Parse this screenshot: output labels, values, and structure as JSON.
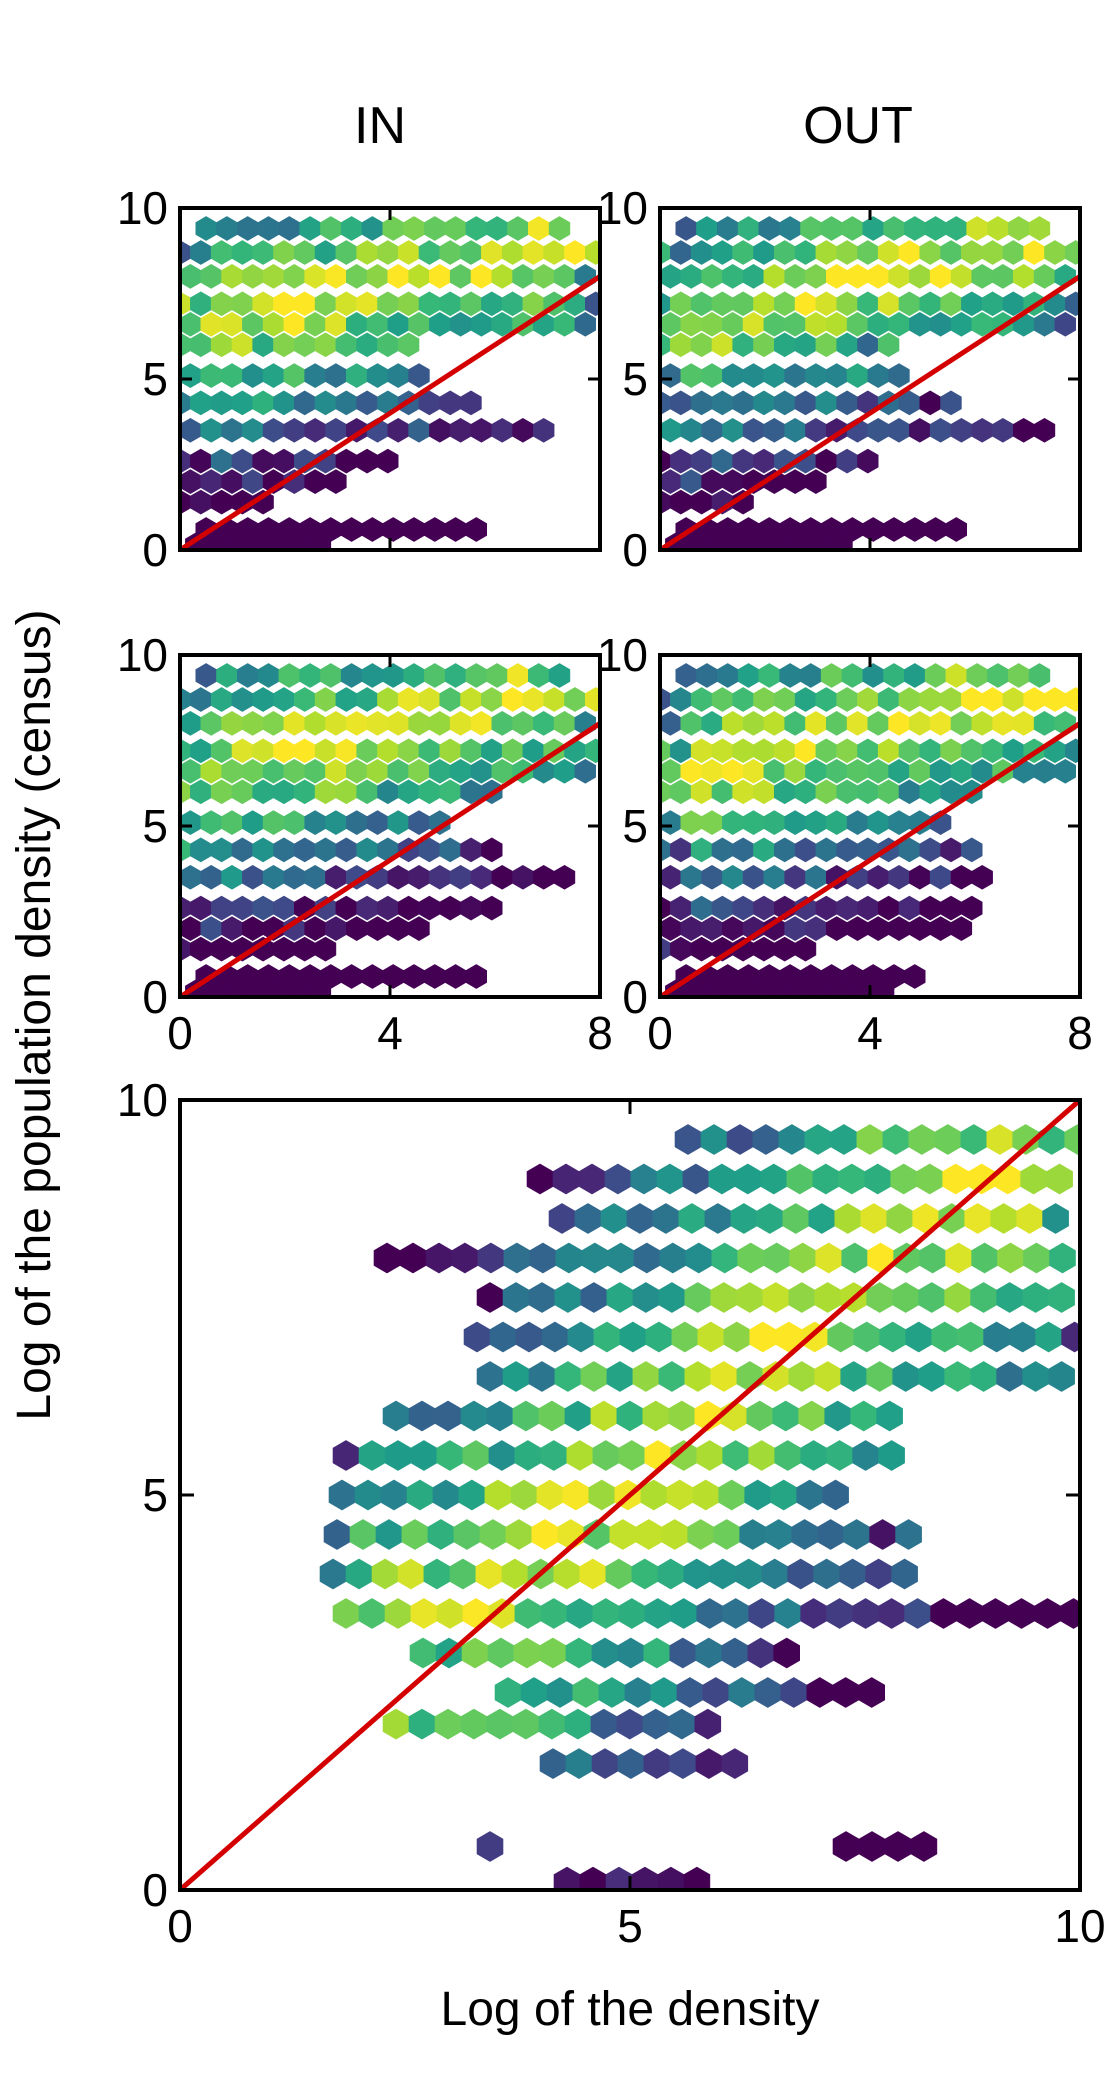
{
  "figure": {
    "ylabel": "Log of the population density (census)",
    "xlabel": "Log of the density",
    "column_titles": [
      "IN",
      "OUT"
    ]
  },
  "chart_data": [
    {
      "type": "heatmap",
      "title": "IN",
      "xlim": [
        0,
        8
      ],
      "ylim": [
        0,
        10
      ],
      "xticks": [
        "0",
        "4",
        "8"
      ],
      "yticks": [
        "0",
        "5",
        "10"
      ],
      "ref_line": [
        [
          0,
          0
        ],
        [
          8,
          8
        ]
      ],
      "colormap": "viridis",
      "density_ridge": {
        "slope": 0.35,
        "intercept": 6.4
      },
      "bands": [
        {
          "y": 0.15,
          "x": [
            0.3,
            3.0
          ]
        },
        {
          "y": 0.6,
          "x": [
            0.3,
            6.0
          ]
        },
        {
          "y": 1.4,
          "x": [
            0.0,
            1.8
          ]
        },
        {
          "y": 2.0,
          "x": [
            0.0,
            3.3
          ]
        },
        {
          "y": 2.6,
          "x": [
            0.0,
            4.2
          ]
        },
        {
          "y": 3.5,
          "x": [
            0.0,
            7.3
          ]
        },
        {
          "y": 4.3,
          "x": [
            0.0,
            5.7
          ]
        },
        {
          "y": 5.1,
          "x": [
            0.0,
            4.8
          ]
        },
        {
          "y": 6.0,
          "x": [
            0.0,
            4.5
          ]
        },
        {
          "y": 6.6,
          "x": [
            0.0,
            8.0
          ]
        },
        {
          "y": 7.2,
          "x": [
            0.0,
            8.0
          ]
        },
        {
          "y": 8.0,
          "x": [
            0.0,
            8.0
          ]
        },
        {
          "y": 8.7,
          "x": [
            0.0,
            8.0
          ]
        },
        {
          "y": 9.4,
          "x": [
            0.3,
            7.4
          ]
        }
      ]
    },
    {
      "type": "heatmap",
      "title": "OUT",
      "xlim": [
        0,
        8
      ],
      "ylim": [
        0,
        10
      ],
      "xticks": [
        "0",
        "4",
        "8"
      ],
      "yticks": [
        "0",
        "5",
        "10"
      ],
      "ref_line": [
        [
          0,
          0
        ],
        [
          8,
          8
        ]
      ],
      "colormap": "viridis",
      "density_ridge": {
        "slope": 0.35,
        "intercept": 6.4
      },
      "bands": [
        {
          "y": 0.15,
          "x": [
            0.3,
            3.5
          ]
        },
        {
          "y": 0.6,
          "x": [
            0.3,
            5.7
          ]
        },
        {
          "y": 1.4,
          "x": [
            0.0,
            1.8
          ]
        },
        {
          "y": 2.0,
          "x": [
            0.0,
            3.2
          ]
        },
        {
          "y": 2.6,
          "x": [
            0.0,
            4.2
          ]
        },
        {
          "y": 3.5,
          "x": [
            0.0,
            7.4
          ]
        },
        {
          "y": 4.3,
          "x": [
            0.0,
            5.6
          ]
        },
        {
          "y": 5.1,
          "x": [
            0.0,
            4.6
          ]
        },
        {
          "y": 6.0,
          "x": [
            0.0,
            4.4
          ]
        },
        {
          "y": 6.6,
          "x": [
            0.0,
            8.0
          ]
        },
        {
          "y": 7.2,
          "x": [
            0.0,
            8.0
          ]
        },
        {
          "y": 8.0,
          "x": [
            0.0,
            8.0
          ]
        },
        {
          "y": 8.7,
          "x": [
            0.0,
            8.0
          ]
        },
        {
          "y": 9.4,
          "x": [
            0.3,
            7.4
          ]
        }
      ]
    },
    {
      "type": "heatmap",
      "xlim": [
        0,
        8
      ],
      "ylim": [
        0,
        10
      ],
      "xticks": [
        "0",
        "4",
        "8"
      ],
      "yticks": [
        "0",
        "5",
        "10"
      ],
      "ref_line": [
        [
          0,
          0
        ],
        [
          8,
          8
        ]
      ],
      "colormap": "viridis",
      "density_ridge": {
        "slope": 0.35,
        "intercept": 6.4
      },
      "bands": [
        {
          "y": 0.15,
          "x": [
            0.3,
            3.0
          ]
        },
        {
          "y": 0.6,
          "x": [
            0.3,
            5.7
          ]
        },
        {
          "y": 1.4,
          "x": [
            0.0,
            2.8
          ]
        },
        {
          "y": 2.0,
          "x": [
            0.0,
            4.8
          ]
        },
        {
          "y": 2.6,
          "x": [
            0.0,
            6.2
          ]
        },
        {
          "y": 3.5,
          "x": [
            0.0,
            7.4
          ]
        },
        {
          "y": 4.3,
          "x": [
            0.0,
            6.0
          ]
        },
        {
          "y": 5.1,
          "x": [
            0.0,
            5.0
          ]
        },
        {
          "y": 6.0,
          "x": [
            0.0,
            6.0
          ]
        },
        {
          "y": 6.6,
          "x": [
            0.0,
            8.0
          ]
        },
        {
          "y": 7.2,
          "x": [
            0.0,
            8.0
          ]
        },
        {
          "y": 8.0,
          "x": [
            0.0,
            8.0
          ]
        },
        {
          "y": 8.7,
          "x": [
            0.0,
            8.0
          ]
        },
        {
          "y": 9.4,
          "x": [
            0.3,
            7.4
          ]
        }
      ]
    },
    {
      "type": "heatmap",
      "xlim": [
        0,
        8
      ],
      "ylim": [
        0,
        10
      ],
      "xticks": [
        "0",
        "4",
        "8"
      ],
      "yticks": [
        "0",
        "5",
        "10"
      ],
      "ref_line": [
        [
          0,
          0
        ],
        [
          8,
          8
        ]
      ],
      "colormap": "viridis",
      "density_ridge": {
        "slope": 0.35,
        "intercept": 6.4
      },
      "bands": [
        {
          "y": 0.15,
          "x": [
            0.3,
            4.4
          ]
        },
        {
          "y": 0.6,
          "x": [
            0.3,
            5.0
          ]
        },
        {
          "y": 1.4,
          "x": [
            0.0,
            2.8
          ]
        },
        {
          "y": 2.0,
          "x": [
            0.0,
            6.0
          ]
        },
        {
          "y": 2.6,
          "x": [
            0.0,
            6.0
          ]
        },
        {
          "y": 3.5,
          "x": [
            0.0,
            6.4
          ]
        },
        {
          "y": 4.3,
          "x": [
            0.0,
            6.0
          ]
        },
        {
          "y": 5.1,
          "x": [
            0.0,
            5.4
          ]
        },
        {
          "y": 6.0,
          "x": [
            0.0,
            6.3
          ]
        },
        {
          "y": 6.6,
          "x": [
            0.0,
            8.0
          ]
        },
        {
          "y": 7.2,
          "x": [
            0.0,
            8.0
          ]
        },
        {
          "y": 8.0,
          "x": [
            0.0,
            8.0
          ]
        },
        {
          "y": 8.7,
          "x": [
            0.0,
            8.0
          ]
        },
        {
          "y": 9.4,
          "x": [
            0.3,
            7.4
          ]
        }
      ]
    },
    {
      "type": "heatmap",
      "xlim": [
        0,
        10
      ],
      "ylim": [
        0,
        10
      ],
      "xticks": [
        "0",
        "5",
        "10"
      ],
      "yticks": [
        "0",
        "5",
        "10"
      ],
      "ref_line": [
        [
          0,
          0
        ],
        [
          10,
          10
        ]
      ],
      "colormap": "viridis",
      "density_ridge": {
        "slope": 0.95,
        "intercept": 0.5
      },
      "bands": [
        {
          "y": 0.1,
          "x": [
            4.3,
            6.0
          ]
        },
        {
          "y": 0.55,
          "x": [
            3.3,
            3.6
          ]
        },
        {
          "y": 0.55,
          "x": [
            7.4,
            8.3
          ]
        },
        {
          "y": 1.6,
          "x": [
            4.0,
            6.4
          ]
        },
        {
          "y": 2.1,
          "x": [
            2.4,
            6.0
          ]
        },
        {
          "y": 2.5,
          "x": [
            3.5,
            7.8
          ]
        },
        {
          "y": 3.0,
          "x": [
            2.7,
            7.0
          ]
        },
        {
          "y": 3.5,
          "x": [
            1.7,
            10.0
          ]
        },
        {
          "y": 4.0,
          "x": [
            1.7,
            8.3
          ]
        },
        {
          "y": 4.5,
          "x": [
            1.6,
            8.1
          ]
        },
        {
          "y": 5.0,
          "x": [
            1.8,
            7.3
          ]
        },
        {
          "y": 5.5,
          "x": [
            1.7,
            8.1
          ]
        },
        {
          "y": 6.0,
          "x": [
            2.4,
            8.0
          ]
        },
        {
          "y": 6.5,
          "x": [
            3.3,
            10.0
          ]
        },
        {
          "y": 7.0,
          "x": [
            3.3,
            10.0
          ]
        },
        {
          "y": 7.5,
          "x": [
            3.3,
            10.0
          ]
        },
        {
          "y": 8.0,
          "x": [
            2.3,
            10.0
          ]
        },
        {
          "y": 8.5,
          "x": [
            4.1,
            10.0
          ]
        },
        {
          "y": 9.0,
          "x": [
            4.0,
            10.0
          ]
        },
        {
          "y": 9.5,
          "x": [
            5.5,
            10.0
          ]
        }
      ]
    }
  ]
}
